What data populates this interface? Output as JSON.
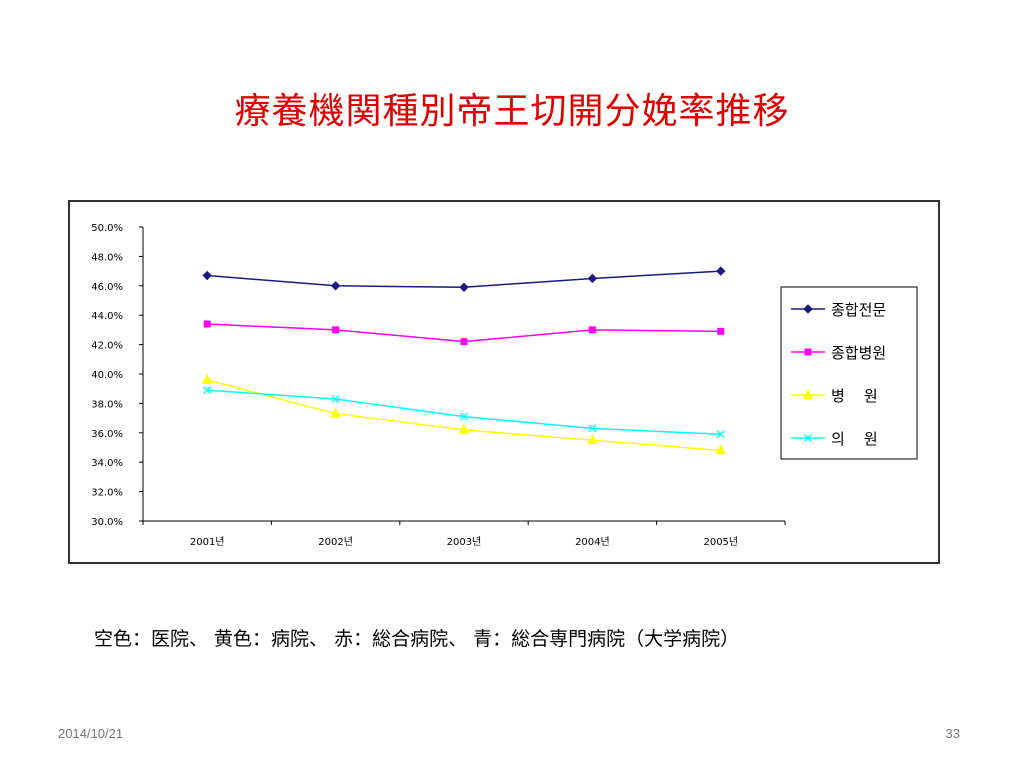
{
  "slide": {
    "title": "療養機関種別帝王切開分娩率推移",
    "caption": "空色：医院、 黄色：病院、 赤：総合病院、 青：総合専門病院（大学病院）",
    "footer_date": "2014/10/21",
    "page_number": "33"
  },
  "chart_data": {
    "type": "line",
    "title": "",
    "xlabel": "",
    "ylabel": "",
    "categories": [
      "2001년",
      "2002년",
      "2003년",
      "2004년",
      "2005년"
    ],
    "y_ticks": [
      "30.0%",
      "32.0%",
      "34.0%",
      "36.0%",
      "38.0%",
      "40.0%",
      "42.0%",
      "44.0%",
      "46.0%",
      "48.0%",
      "50.0%"
    ],
    "ylim": [
      30,
      50
    ],
    "grid": false,
    "legend_position": "right",
    "series": [
      {
        "name": "종합전문",
        "color": "#1a1a80",
        "marker": "diamond",
        "values": [
          46.7,
          46.0,
          45.9,
          46.5,
          47.0
        ]
      },
      {
        "name": "종합병원",
        "color": "#ff00ff",
        "marker": "square",
        "values": [
          43.4,
          43.0,
          42.2,
          43.0,
          42.9
        ]
      },
      {
        "name": "병    원",
        "color": "#ffff00",
        "marker": "triangle",
        "values": [
          39.6,
          37.3,
          36.2,
          35.5,
          34.8
        ]
      },
      {
        "name": "의    원",
        "color": "#00ffff",
        "marker": "x",
        "values": [
          38.9,
          38.3,
          37.1,
          36.3,
          35.9
        ]
      }
    ]
  }
}
